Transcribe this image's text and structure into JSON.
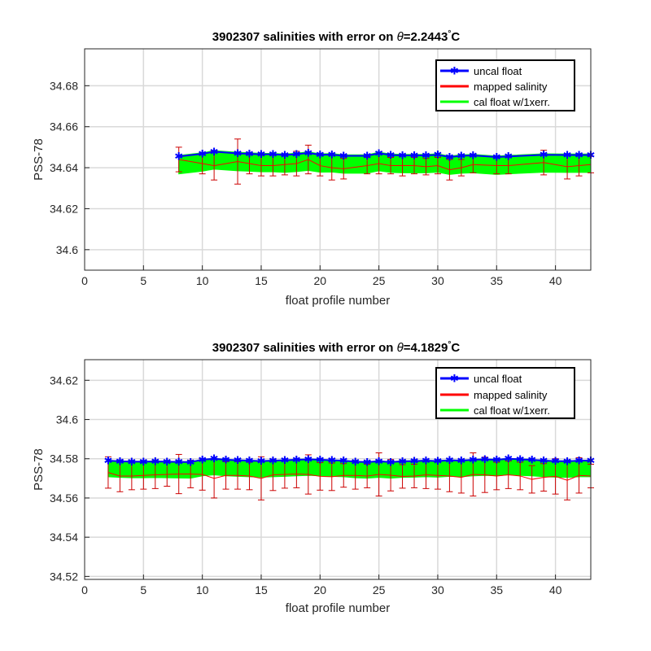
{
  "colors": {
    "uncal": "#0000ff",
    "mapped": "#ff0000",
    "errorbar": "#cc0000",
    "cal": "#00ff00",
    "grid": "#d9d9d9"
  },
  "chart_data": [
    {
      "type": "line",
      "title_prefix": "3902307 salinities with error on ",
      "title_theta": "θ",
      "title_value": "=2.2443",
      "title_degree": "°",
      "title_unit": "C",
      "xlabel": "float profile number",
      "ylabel": "PSS-78",
      "xlim": [
        0,
        43
      ],
      "ylim": [
        34.59,
        34.698
      ],
      "xticks": [
        0,
        5,
        10,
        15,
        20,
        25,
        30,
        35,
        40
      ],
      "yticks": [
        34.6,
        34.62,
        34.64,
        34.66,
        34.68
      ],
      "ytick_labels": [
        "34.6",
        "34.62",
        "34.64",
        "34.66",
        "34.68"
      ],
      "grid": true,
      "legend": {
        "position": "top-right",
        "entries": [
          "uncal float",
          "mapped salinity",
          "cal float w/1xerr."
        ]
      },
      "x": [
        8,
        10,
        11,
        13,
        14,
        15,
        16,
        17,
        18,
        19,
        20,
        21,
        22,
        24,
        25,
        26,
        27,
        28,
        29,
        30,
        31,
        32,
        33,
        35,
        36,
        39,
        41,
        42,
        43
      ],
      "series": [
        {
          "name": "uncal float",
          "values": [
            34.6455,
            34.6468,
            34.6478,
            34.647,
            34.6468,
            34.6465,
            34.6466,
            34.6462,
            34.6466,
            34.6472,
            34.6463,
            34.6464,
            34.6458,
            34.6458,
            34.647,
            34.6462,
            34.646,
            34.646,
            34.646,
            34.6463,
            34.6452,
            34.6458,
            34.646,
            34.6452,
            34.6455,
            34.6463,
            34.6462,
            34.6462,
            34.6462
          ]
        },
        {
          "name": "mapped salinity",
          "values": [
            34.644,
            34.642,
            34.641,
            34.643,
            34.642,
            34.641,
            34.641,
            34.6415,
            34.642,
            34.644,
            34.641,
            34.64,
            34.6395,
            34.641,
            34.642,
            34.641,
            34.641,
            34.641,
            34.6405,
            34.641,
            34.639,
            34.64,
            34.6415,
            34.641,
            34.641,
            34.6425,
            34.6405,
            34.641,
            34.6415
          ],
          "error": [
            0.006,
            0.005,
            0.007,
            0.011,
            0.005,
            0.005,
            0.005,
            0.005,
            0.006,
            0.007,
            0.005,
            0.006,
            0.005,
            0.004,
            0.005,
            0.004,
            0.005,
            0.004,
            0.004,
            0.004,
            0.005,
            0.004,
            0.004,
            0.004,
            0.004,
            0.006,
            0.006,
            0.005,
            0.004
          ]
        },
        {
          "name": "cal float w/1xerr.",
          "center": [
            34.6415,
            34.6428,
            34.6438,
            34.643,
            34.6428,
            34.6425,
            34.6425,
            34.6422,
            34.6426,
            34.6432,
            34.6423,
            34.6424,
            34.6418,
            34.6418,
            34.643,
            34.6422,
            34.642,
            34.642,
            34.642,
            34.6423,
            34.6412,
            34.6418,
            34.642,
            34.6412,
            34.6415,
            34.6423,
            34.6422,
            34.6422,
            34.6422
          ],
          "halfwidth": 0.0045
        }
      ]
    },
    {
      "type": "line",
      "title_prefix": "3902307 salinities with error on ",
      "title_theta": "θ",
      "title_value": "=4.1829",
      "title_degree": "°",
      "title_unit": "C",
      "xlabel": "float profile number",
      "ylabel": "PSS-78",
      "xlim": [
        0,
        43
      ],
      "ylim": [
        34.5185,
        34.6305
      ],
      "xticks": [
        0,
        5,
        10,
        15,
        20,
        25,
        30,
        35,
        40
      ],
      "yticks": [
        34.52,
        34.54,
        34.56,
        34.58,
        34.6,
        34.62
      ],
      "ytick_labels": [
        "34.52",
        "34.54",
        "34.56",
        "34.58",
        "34.6",
        "34.62"
      ],
      "grid": true,
      "legend": {
        "position": "top-right",
        "entries": [
          "uncal float",
          "mapped salinity",
          "cal float w/1xerr."
        ]
      },
      "x": [
        2,
        3,
        4,
        5,
        6,
        7,
        8,
        9,
        10,
        11,
        12,
        13,
        14,
        15,
        16,
        17,
        18,
        19,
        20,
        21,
        22,
        23,
        24,
        25,
        26,
        27,
        28,
        29,
        30,
        31,
        32,
        33,
        34,
        35,
        36,
        37,
        38,
        39,
        40,
        41,
        42,
        43
      ],
      "series": [
        {
          "name": "uncal float",
          "values": [
            34.579,
            34.5787,
            34.5785,
            34.5785,
            34.5786,
            34.5785,
            34.5784,
            34.5783,
            34.5795,
            34.58,
            34.5795,
            34.5792,
            34.579,
            34.5788,
            34.579,
            34.5792,
            34.5795,
            34.5797,
            34.5795,
            34.5792,
            34.579,
            34.5785,
            34.5783,
            34.5787,
            34.5783,
            34.5787,
            34.5788,
            34.579,
            34.5788,
            34.5792,
            34.579,
            34.5795,
            34.5797,
            34.5795,
            34.58,
            34.5797,
            34.5795,
            34.579,
            34.5788,
            34.5787,
            34.579,
            34.579
          ]
        },
        {
          "name": "mapped salinity",
          "values": [
            34.573,
            34.5712,
            34.5712,
            34.5715,
            34.5718,
            34.572,
            34.5722,
            34.5722,
            34.572,
            34.57,
            34.5715,
            34.5715,
            34.5712,
            34.57,
            34.5718,
            34.572,
            34.5722,
            34.572,
            34.571,
            34.5708,
            34.5715,
            34.5715,
            34.5712,
            34.572,
            34.5716,
            34.571,
            34.5712,
            34.5718,
            34.5715,
            34.5712,
            34.5705,
            34.572,
            34.5718,
            34.5712,
            34.5718,
            34.5712,
            34.5695,
            34.5705,
            34.571,
            34.569,
            34.5715,
            34.5712
          ],
          "error": [
            0.008,
            0.008,
            0.007,
            0.007,
            0.007,
            0.006,
            0.01,
            0.007,
            0.008,
            0.01,
            0.007,
            0.007,
            0.007,
            0.011,
            0.008,
            0.007,
            0.007,
            0.01,
            0.007,
            0.007,
            0.006,
            0.007,
            0.006,
            0.011,
            0.008,
            0.006,
            0.006,
            0.007,
            0.007,
            0.008,
            0.008,
            0.011,
            0.009,
            0.007,
            0.007,
            0.007,
            0.007,
            0.007,
            0.009,
            0.01,
            0.009,
            0.006
          ]
        },
        {
          "name": "cal float w/1xerr.",
          "center": [
            34.575,
            34.5747,
            34.5745,
            34.5745,
            34.5746,
            34.5745,
            34.5744,
            34.5743,
            34.5755,
            34.576,
            34.5755,
            34.5752,
            34.575,
            34.5748,
            34.575,
            34.5752,
            34.5755,
            34.5757,
            34.5755,
            34.5752,
            34.575,
            34.5745,
            34.5743,
            34.5747,
            34.5743,
            34.5747,
            34.5748,
            34.575,
            34.5748,
            34.5752,
            34.575,
            34.5755,
            34.5757,
            34.5755,
            34.576,
            34.5757,
            34.5755,
            34.575,
            34.5748,
            34.5747,
            34.575,
            34.575
          ],
          "halfwidth": 0.0042
        }
      ]
    }
  ]
}
